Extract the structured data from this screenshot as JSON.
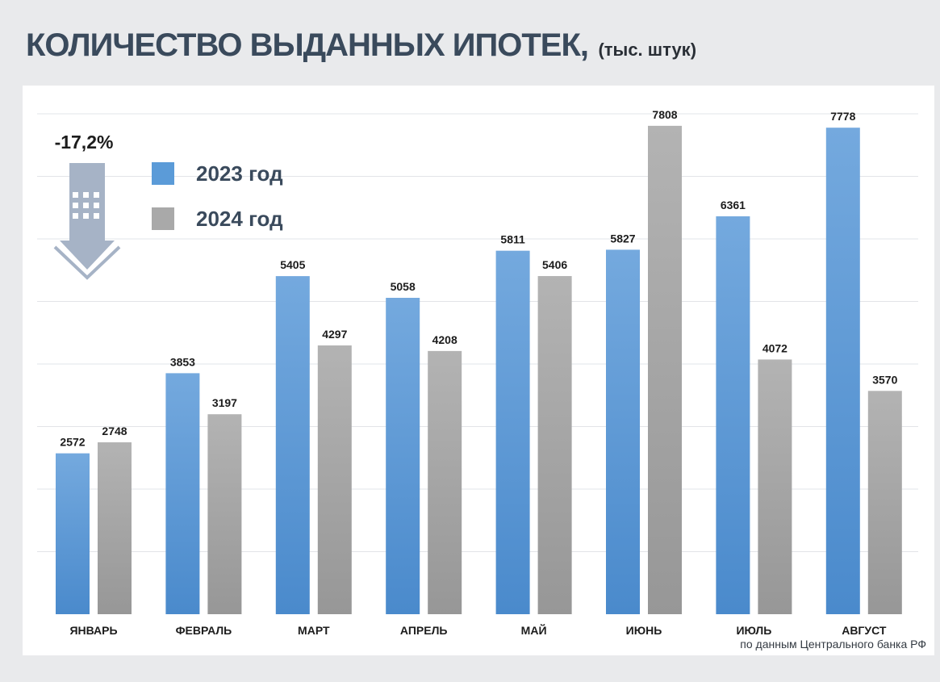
{
  "title": "КОЛИЧЕСТВО ВЫДАННЫХ ИПОТЕК,",
  "subtitle": "(тыс. штук)",
  "source": "по данным  Центрального банка РФ",
  "change_label": "-17,2%",
  "colors": {
    "series_2023": "#5b9bd8",
    "series_2024": "#a9a9a9",
    "arrow": "#a6b3c6",
    "grid": "#e2e4e8",
    "label": "#1c1c1c",
    "legend_text": "#3a4a5c"
  },
  "icons": {
    "change": "down-arrow-building-icon"
  },
  "chart_data": {
    "type": "bar",
    "title": "КОЛИЧЕСТВО ВЫДАННЫХ ИПОТЕК, (тыс. штук)",
    "categories": [
      "ЯНВАРЬ",
      "ФЕВРАЛЬ",
      "МАРТ",
      "АПРЕЛЬ",
      "МАЙ",
      "ИЮНЬ",
      "ИЮЛЬ",
      "АВГУСТ"
    ],
    "series": [
      {
        "name": "2023 год",
        "values": [
          2572,
          3853,
          5405,
          5058,
          5811,
          5827,
          6361,
          7778
        ]
      },
      {
        "name": "2024 год",
        "values": [
          2748,
          3197,
          4297,
          4208,
          5406,
          7808,
          4072,
          3570
        ]
      }
    ],
    "ylim": [
      0,
      8000
    ],
    "grid": true,
    "legend": "top-left",
    "xlabel": "",
    "ylabel": ""
  }
}
